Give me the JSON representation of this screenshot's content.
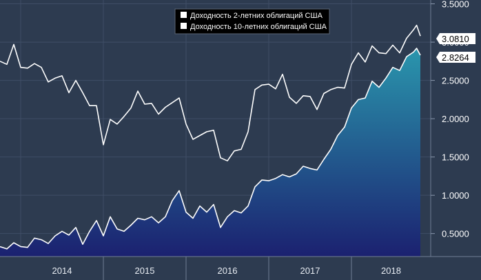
{
  "chart_data": {
    "type": "line",
    "title": "",
    "xlabel": "",
    "ylabel": "",
    "x_range": [
      "2013-10",
      "2018-11"
    ],
    "x_tick_labels": [
      "2014",
      "2015",
      "2016",
      "2017",
      "2018"
    ],
    "ylim": [
      0.2,
      3.55
    ],
    "y_ticks": [
      "0.5000",
      "1.0000",
      "1.5000",
      "2.0000",
      "2.5000",
      "3.0000",
      "3.5000"
    ],
    "grid": true,
    "legend_position": "top-center",
    "series": [
      {
        "name": "Доходность 2-летних облигаций США",
        "style": "area",
        "last_value_label": "2.8264",
        "points": [
          [
            "2013-10",
            0.33
          ],
          [
            "2013-11",
            0.3
          ],
          [
            "2013-12",
            0.38
          ],
          [
            "2014-01",
            0.33
          ],
          [
            "2014-02",
            0.32
          ],
          [
            "2014-03",
            0.44
          ],
          [
            "2014-04",
            0.42
          ],
          [
            "2014-05",
            0.37
          ],
          [
            "2014-06",
            0.47
          ],
          [
            "2014-07",
            0.53
          ],
          [
            "2014-08",
            0.48
          ],
          [
            "2014-09",
            0.58
          ],
          [
            "2014-10",
            0.36
          ],
          [
            "2014-11",
            0.53
          ],
          [
            "2014-12",
            0.67
          ],
          [
            "2015-01",
            0.47
          ],
          [
            "2015-02",
            0.72
          ],
          [
            "2015-03",
            0.56
          ],
          [
            "2015-04",
            0.53
          ],
          [
            "2015-05",
            0.61
          ],
          [
            "2015-06",
            0.7
          ],
          [
            "2015-07",
            0.68
          ],
          [
            "2015-08",
            0.72
          ],
          [
            "2015-09",
            0.64
          ],
          [
            "2015-10",
            0.72
          ],
          [
            "2015-11",
            0.93
          ],
          [
            "2015-12",
            1.06
          ],
          [
            "2016-01",
            0.78
          ],
          [
            "2016-02",
            0.7
          ],
          [
            "2016-03",
            0.86
          ],
          [
            "2016-04",
            0.78
          ],
          [
            "2016-05",
            0.88
          ],
          [
            "2016-06",
            0.58
          ],
          [
            "2016-07",
            0.72
          ],
          [
            "2016-08",
            0.8
          ],
          [
            "2016-09",
            0.77
          ],
          [
            "2016-10",
            0.86
          ],
          [
            "2016-11",
            1.11
          ],
          [
            "2016-12",
            1.2
          ],
          [
            "2017-01",
            1.19
          ],
          [
            "2017-02",
            1.22
          ],
          [
            "2017-03",
            1.27
          ],
          [
            "2017-04",
            1.24
          ],
          [
            "2017-05",
            1.28
          ],
          [
            "2017-06",
            1.38
          ],
          [
            "2017-07",
            1.35
          ],
          [
            "2017-08",
            1.33
          ],
          [
            "2017-09",
            1.47
          ],
          [
            "2017-10",
            1.6
          ],
          [
            "2017-11",
            1.78
          ],
          [
            "2017-12",
            1.89
          ],
          [
            "2018-01",
            2.14
          ],
          [
            "2018-02",
            2.25
          ],
          [
            "2018-03",
            2.27
          ],
          [
            "2018-04",
            2.49
          ],
          [
            "2018-05",
            2.41
          ],
          [
            "2018-06",
            2.53
          ],
          [
            "2018-07",
            2.67
          ],
          [
            "2018-08",
            2.63
          ],
          [
            "2018-09",
            2.81
          ],
          [
            "2018-10",
            2.87
          ],
          [
            "2018-10-15",
            2.92
          ],
          [
            "2018-11",
            2.83
          ]
        ]
      },
      {
        "name": "Доходность 10-летних облигаций США",
        "style": "line",
        "last_value_label": "3.0810",
        "points": [
          [
            "2013-10",
            2.75
          ],
          [
            "2013-11",
            2.71
          ],
          [
            "2013-12",
            2.97
          ],
          [
            "2014-01",
            2.67
          ],
          [
            "2014-02",
            2.66
          ],
          [
            "2014-03",
            2.72
          ],
          [
            "2014-04",
            2.67
          ],
          [
            "2014-05",
            2.48
          ],
          [
            "2014-06",
            2.53
          ],
          [
            "2014-07",
            2.56
          ],
          [
            "2014-08",
            2.34
          ],
          [
            "2014-09",
            2.5
          ],
          [
            "2014-10",
            2.34
          ],
          [
            "2014-11",
            2.17
          ],
          [
            "2014-12",
            2.17
          ],
          [
            "2015-01",
            1.66
          ],
          [
            "2015-02",
            1.99
          ],
          [
            "2015-03",
            1.93
          ],
          [
            "2015-04",
            2.03
          ],
          [
            "2015-05",
            2.14
          ],
          [
            "2015-06",
            2.36
          ],
          [
            "2015-07",
            2.19
          ],
          [
            "2015-08",
            2.2
          ],
          [
            "2015-09",
            2.06
          ],
          [
            "2015-10",
            2.15
          ],
          [
            "2015-11",
            2.21
          ],
          [
            "2015-12",
            2.27
          ],
          [
            "2016-01",
            1.93
          ],
          [
            "2016-02",
            1.73
          ],
          [
            "2016-03",
            1.78
          ],
          [
            "2016-04",
            1.83
          ],
          [
            "2016-05",
            1.85
          ],
          [
            "2016-06",
            1.49
          ],
          [
            "2016-07",
            1.45
          ],
          [
            "2016-08",
            1.58
          ],
          [
            "2016-09",
            1.6
          ],
          [
            "2016-10",
            1.83
          ],
          [
            "2016-11",
            2.38
          ],
          [
            "2016-12",
            2.44
          ],
          [
            "2017-01",
            2.45
          ],
          [
            "2017-02",
            2.39
          ],
          [
            "2017-03",
            2.58
          ],
          [
            "2017-04",
            2.28
          ],
          [
            "2017-05",
            2.2
          ],
          [
            "2017-06",
            2.3
          ],
          [
            "2017-07",
            2.29
          ],
          [
            "2017-08",
            2.12
          ],
          [
            "2017-09",
            2.33
          ],
          [
            "2017-10",
            2.38
          ],
          [
            "2017-11",
            2.41
          ],
          [
            "2017-12",
            2.4
          ],
          [
            "2018-01",
            2.71
          ],
          [
            "2018-02",
            2.86
          ],
          [
            "2018-03",
            2.74
          ],
          [
            "2018-04",
            2.95
          ],
          [
            "2018-05",
            2.86
          ],
          [
            "2018-06",
            2.85
          ],
          [
            "2018-07",
            2.96
          ],
          [
            "2018-08",
            2.86
          ],
          [
            "2018-09",
            3.05
          ],
          [
            "2018-10",
            3.16
          ],
          [
            "2018-10-15",
            3.22
          ],
          [
            "2018-11",
            3.08
          ]
        ]
      }
    ]
  },
  "colors": {
    "background": "#2d3b50",
    "grid": "#3f4e66",
    "line": "#ffffff",
    "area_top": "#2a96ad",
    "area_bottom": "#1b2170",
    "callout_bg": "#ffffff",
    "legend_bg": "#000000"
  }
}
